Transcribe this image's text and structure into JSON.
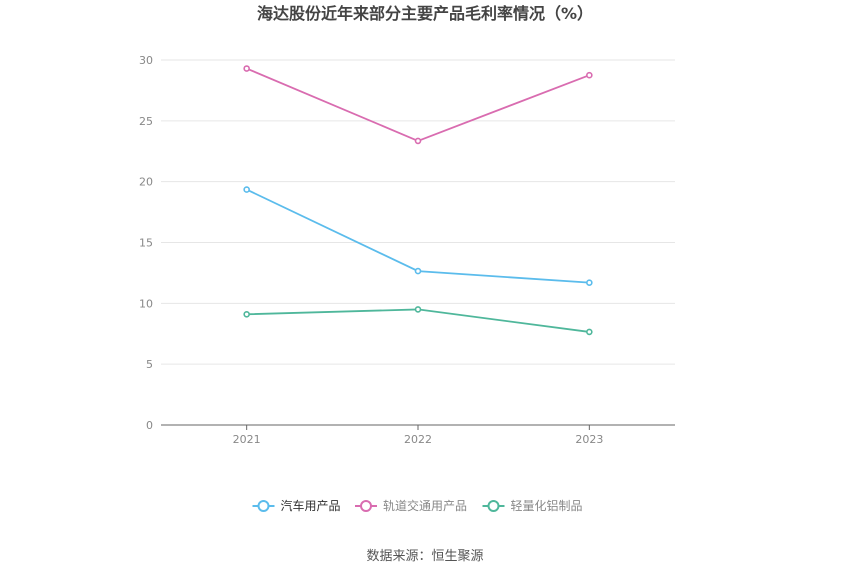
{
  "title": "海达股份近年来部分主要产品毛利率情况（%）",
  "source": "数据来源：恒生聚源",
  "chart_data": {
    "type": "line",
    "title": "海达股份近年来部分主要产品毛利率情况（%）",
    "x": [
      "2021",
      "2022",
      "2023"
    ],
    "ylim": [
      0,
      30
    ],
    "yticks": [
      0,
      5,
      10,
      15,
      20,
      25,
      30
    ],
    "grid": true,
    "legend_position": "bottom",
    "series": [
      {
        "name": "汽车用产品",
        "values": [
          19.35,
          12.65,
          11.7
        ],
        "color": "#5bbcec"
      },
      {
        "name": "轨道交通用产品",
        "values": [
          29.3,
          23.35,
          28.75
        ],
        "color": "#d96cb0"
      },
      {
        "name": "轻量化铝制品",
        "values": [
          9.1,
          9.5,
          7.65
        ],
        "color": "#4fb79b"
      }
    ]
  }
}
